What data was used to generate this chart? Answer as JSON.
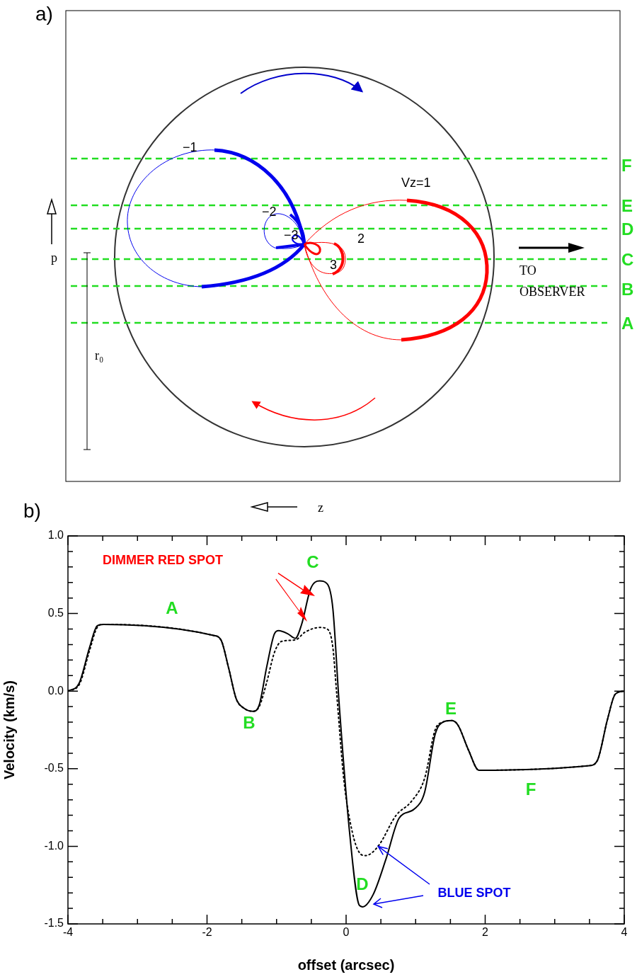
{
  "chart_data": [
    {
      "type": "other",
      "title": "a)",
      "annotations": [
        "F",
        "E",
        "D",
        "C",
        "B",
        "A",
        "Vz=1",
        "−1",
        "−2",
        "−3",
        "2",
        "3",
        "TO OBSERVER",
        "p",
        "r₀",
        "z"
      ]
    },
    {
      "type": "line",
      "title": "b)",
      "xlabel": "offset (arcsec)",
      "ylabel": "Velocity (km/s)",
      "marker": "none",
      "xlim": [
        -4,
        4
      ],
      "ylim": [
        -1.5,
        1.0
      ],
      "xticks": [
        -4,
        {
          "value": -3.5,
          "label": null
        },
        {
          "value": -3,
          "label": null
        },
        {
          "value": -2.5,
          "label": null
        },
        -2,
        {
          "value": -1.5,
          "label": null
        },
        {
          "value": -1,
          "label": null
        },
        {
          "value": -0.5,
          "label": null
        },
        0,
        {
          "value": 0.5,
          "label": null
        },
        {
          "value": 1,
          "label": null
        },
        {
          "value": 1.5,
          "label": null
        },
        2,
        {
          "value": 2.5,
          "label": null
        },
        {
          "value": 3,
          "label": null
        },
        {
          "value": 3.5,
          "label": null
        },
        4
      ],
      "yticks": [
        {
          "value": -1.5,
          "label": "-1.5"
        },
        {
          "value": -1.4,
          "label": null
        },
        {
          "value": -1.3,
          "label": null
        },
        {
          "value": -1.2,
          "label": null
        },
        {
          "value": -1.1,
          "label": null
        },
        {
          "value": -1.0,
          "label": "-1.0"
        },
        {
          "value": -0.9,
          "label": null
        },
        {
          "value": -0.8,
          "label": null
        },
        {
          "value": -0.7,
          "label": null
        },
        {
          "value": -0.6,
          "label": null
        },
        {
          "value": -0.5,
          "label": "-0.5"
        },
        {
          "value": -0.4,
          "label": null
        },
        {
          "value": -0.3,
          "label": null
        },
        {
          "value": -0.2,
          "label": null
        },
        {
          "value": -0.1,
          "label": null
        },
        {
          "value": 0,
          "label": "0.0"
        },
        {
          "value": 0.1,
          "label": null
        },
        {
          "value": 0.2,
          "label": null
        },
        {
          "value": 0.3,
          "label": null
        },
        {
          "value": 0.4,
          "label": null
        },
        {
          "value": 0.5,
          "label": "0.5"
        },
        {
          "value": 0.6,
          "label": null
        },
        {
          "value": 0.7,
          "label": null
        },
        {
          "value": 0.8,
          "label": null
        },
        {
          "value": 0.9,
          "label": null
        },
        {
          "value": 1.0,
          "label": "1.0"
        }
      ],
      "series": [
        {
          "color": "#000000",
          "line_style": "solid",
          "x": [
            -4,
            -3.84,
            -3.69,
            -3.58,
            -3.49,
            -1.92,
            -1.8,
            -1.69,
            -1.58,
            -1.47,
            -1.34,
            -1.25,
            -1.14,
            -1.03,
            -0.97,
            -0.84,
            -0.73,
            -0.64,
            -0.51,
            -0.38,
            -0.27,
            -0.19,
            -0.1,
            0.05,
            0.19,
            0.24,
            0.39,
            0.575,
            0.76,
            0.98,
            1.13,
            1.28,
            1.39,
            1.52,
            1.61,
            1.76,
            1.91,
            3.5,
            3.61,
            3.76,
            3.87,
            4
          ],
          "values": [
            0,
            0.05,
            0.28,
            0.42,
            0.43,
            0.36,
            0.33,
            0.15,
            -0.05,
            -0.11,
            -0.13,
            -0.09,
            0.16,
            0.37,
            0.39,
            0.37,
            0.34,
            0.43,
            0.66,
            0.71,
            0.69,
            0.53,
            -0.08,
            -0.91,
            -1.38,
            -1.39,
            -1.31,
            -1.08,
            -0.82,
            -0.76,
            -0.65,
            -0.28,
            -0.2,
            -0.19,
            -0.22,
            -0.38,
            -0.51,
            -0.48,
            -0.45,
            -0.18,
            -0.02,
            0
          ]
        },
        {
          "color": "#000000",
          "line_style": "dotted",
          "x": [
            -4,
            -3.84,
            -3.69,
            -3.58,
            -3.49,
            -1.92,
            -1.8,
            -1.69,
            -1.58,
            -1.47,
            -1.34,
            -1.25,
            -1.14,
            -1.03,
            -0.93,
            -0.73,
            -0.59,
            -0.38,
            -0.27,
            -0.19,
            -0.14,
            -0.03,
            0.09,
            0.19,
            0.28,
            0.46,
            0.72,
            0.94,
            1.13,
            1.28,
            1.39,
            1.52,
            1.61,
            1.76,
            1.91,
            3.5,
            3.61,
            3.76,
            3.87,
            4
          ],
          "values": [
            0,
            0.04,
            0.26,
            0.41,
            0.43,
            0.36,
            0.33,
            0.15,
            -0.05,
            -0.11,
            -0.13,
            -0.1,
            0.06,
            0.25,
            0.32,
            0.33,
            0.38,
            0.41,
            0.4,
            0.28,
            0.01,
            -0.58,
            -0.91,
            -1.04,
            -1.06,
            -1.0,
            -0.8,
            -0.71,
            -0.56,
            -0.25,
            -0.2,
            -0.19,
            -0.22,
            -0.38,
            -0.51,
            -0.48,
            -0.45,
            -0.18,
            -0.02,
            0
          ]
        }
      ],
      "annotations": [
        "A",
        "B",
        "C",
        "D",
        "E",
        "F",
        "DIMMER RED SPOT",
        {
          "text": "BLUE SPOT",
          "x": 0.46,
          "y": -1.0
        }
      ]
    }
  ]
}
